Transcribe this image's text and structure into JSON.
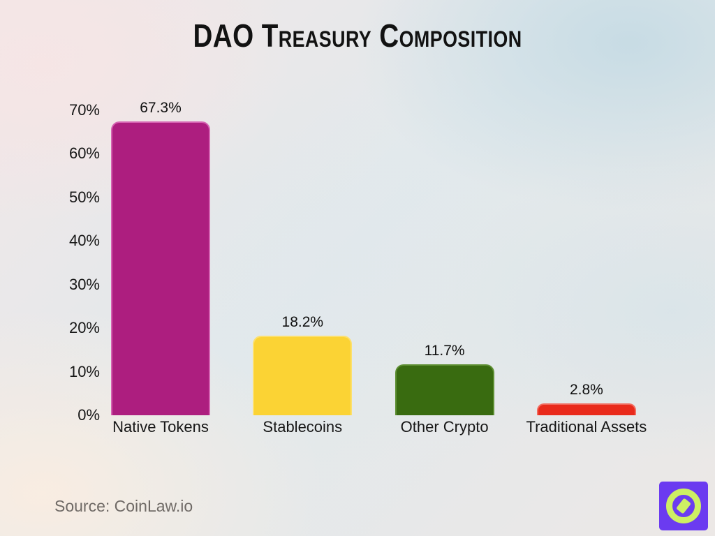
{
  "title": "DAO Treasury Composition",
  "source": "Source: CoinLaw.io",
  "logo": {
    "name": "coinlaw-compass-logo",
    "bg_color": "#6B3BF0",
    "accent_color": "#CDEF63"
  },
  "chart_data": {
    "type": "bar",
    "title": "DAO Treasury Composition",
    "categories": [
      "Native Tokens",
      "Stablecoins",
      "Other Crypto",
      "Traditional Assets"
    ],
    "values": [
      67.3,
      18.2,
      11.7,
      2.8
    ],
    "value_labels": [
      "67.3%",
      "18.2%",
      "11.7%",
      "2.8%"
    ],
    "bar_colors": [
      "#AD1E7F",
      "#FBD334",
      "#396B10",
      "#E92A1B"
    ],
    "bar_border_colors": [
      "#D563B2",
      "#FCE06E",
      "#5E8F33",
      "#F26A5D"
    ],
    "xlabel": "",
    "ylabel": "",
    "ylim": [
      0,
      70
    ],
    "yticks": [
      0,
      10,
      20,
      30,
      40,
      50,
      60,
      70
    ],
    "ytick_labels": [
      "0%",
      "10%",
      "20%",
      "30%",
      "40%",
      "50%",
      "60%",
      "70%"
    ],
    "grid": false,
    "legend": false,
    "background": "pastel-gradient"
  }
}
